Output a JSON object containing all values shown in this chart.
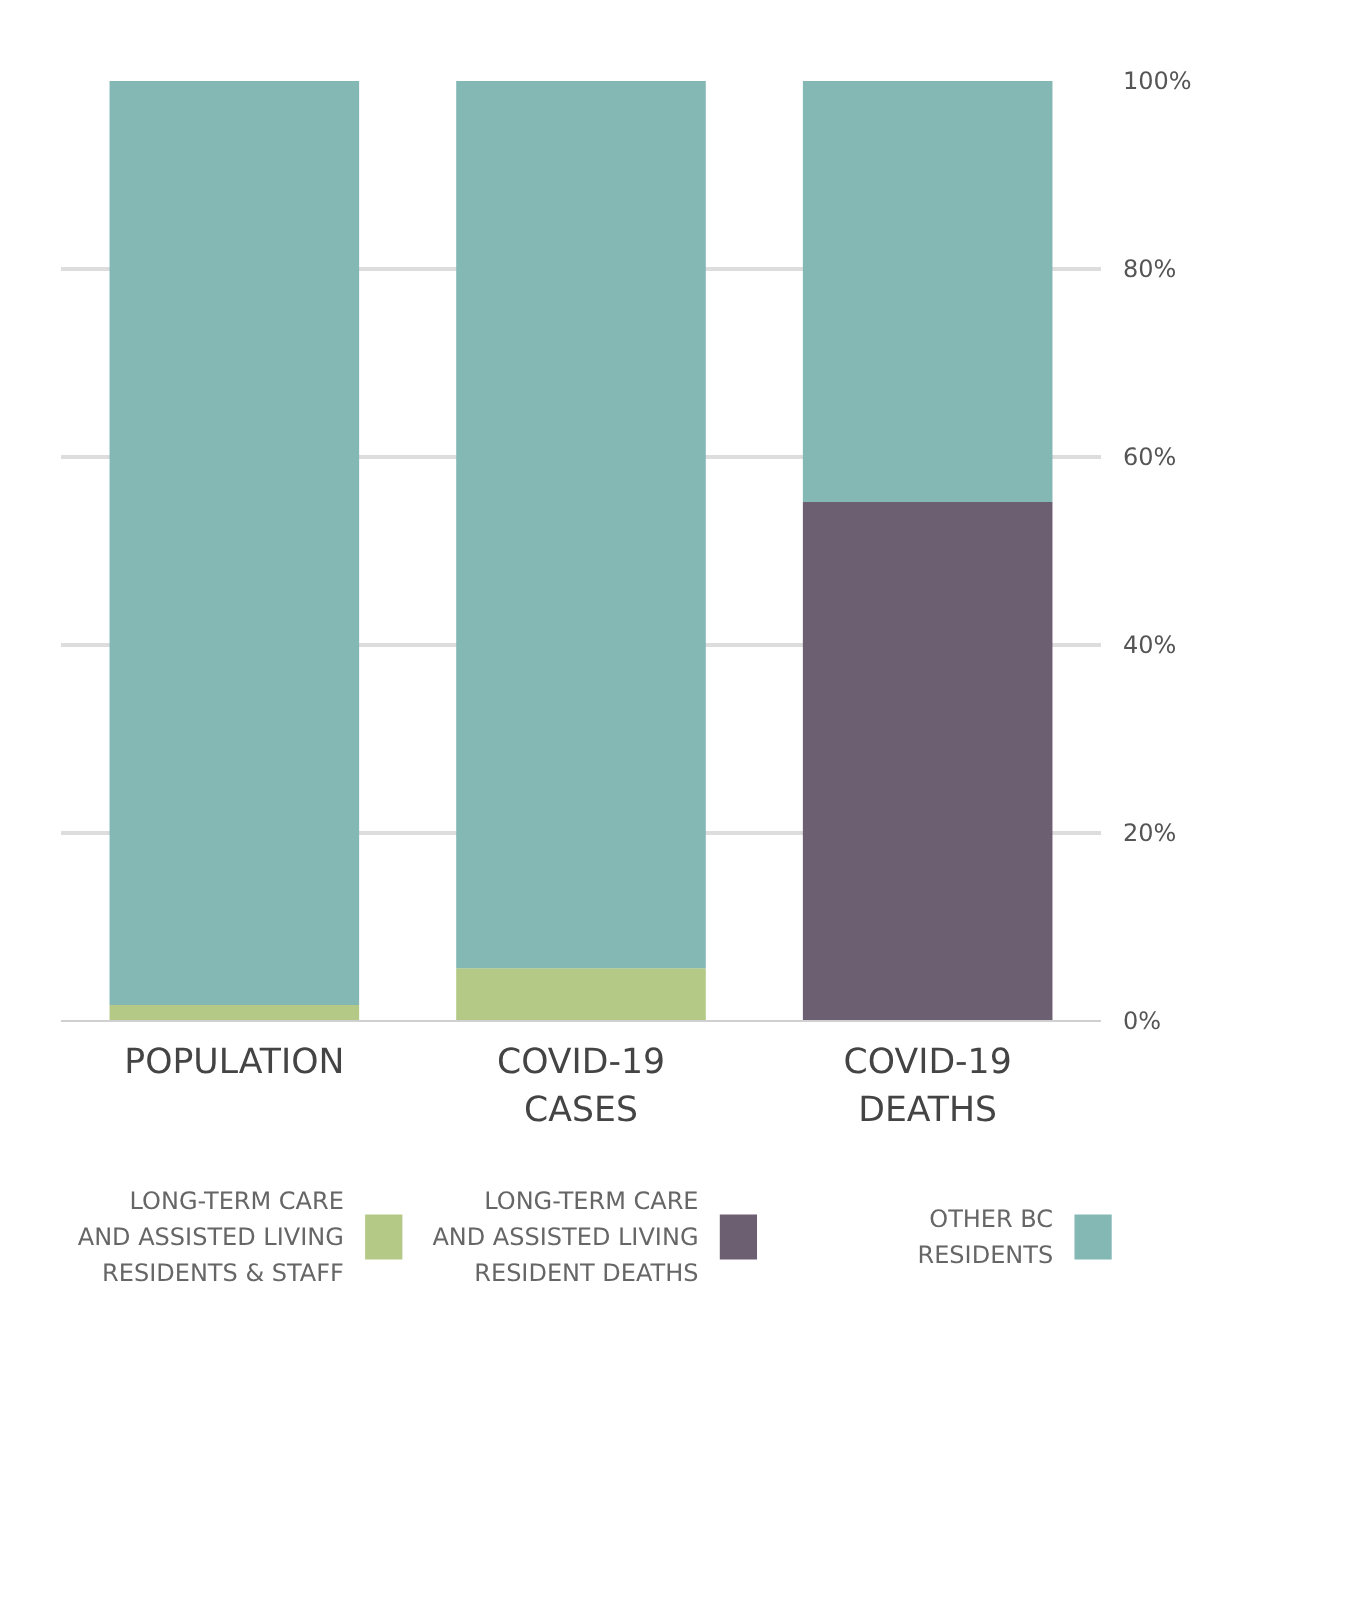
{
  "chart_data": {
    "type": "bar",
    "stacked": true,
    "categories": [
      "POPULATION",
      "COVID-19\nCASES",
      "COVID-19\nDEATHS"
    ],
    "series": [
      {
        "name": "LONG-TERM CARE\nAND ASSISTED LIVING\nRESIDENTS & STAFF",
        "color": "#b5c986",
        "values": [
          1.7,
          5.6,
          null
        ]
      },
      {
        "name": "LONG-TERM CARE\nAND ASSISTED LIVING\nRESIDENT DEATHS",
        "color": "#6d5f72",
        "values": [
          null,
          null,
          55.2
        ]
      },
      {
        "name": "OTHER BC\nRESIDENTS",
        "color": "#84b8b5",
        "values": [
          98.3,
          94.4,
          44.8
        ]
      }
    ],
    "ylim": [
      0,
      100
    ],
    "yticks": [
      {
        "value": 0,
        "label": "0%"
      },
      {
        "value": 20,
        "label": "20%"
      },
      {
        "value": 40,
        "label": "40%"
      },
      {
        "value": 60,
        "label": "60%"
      },
      {
        "value": 80,
        "label": "80%"
      },
      {
        "value": 100,
        "label": "100%"
      }
    ],
    "grid": "y",
    "legend": "bottom"
  }
}
